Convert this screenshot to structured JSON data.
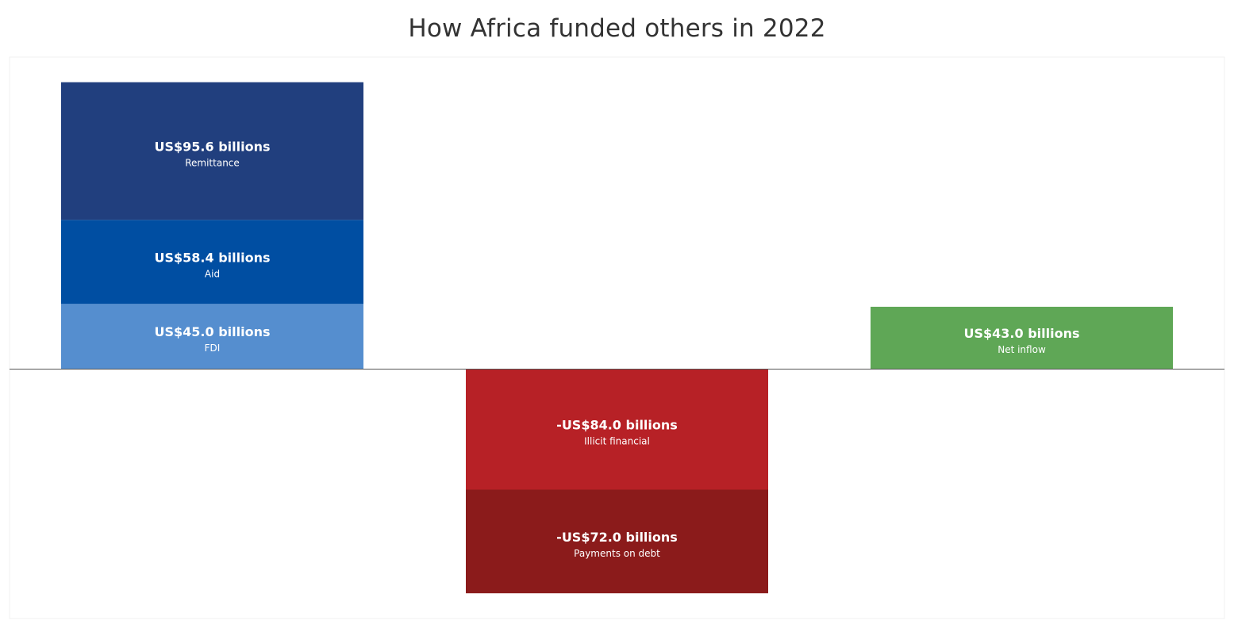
{
  "chart_data": {
    "type": "bar",
    "title": "How Africa funded others in 2022",
    "xlabel": "",
    "ylabel": "",
    "unit": "US$ billions",
    "grid": false,
    "legend": "none",
    "ylim": [
      -156,
      199
    ],
    "categories": [
      "",
      "",
      ""
    ],
    "segments": [
      {
        "category_index": 0,
        "label": "FDI",
        "value": 45.0,
        "value_text": "US$45.0 billions",
        "color": "#558ECF"
      },
      {
        "category_index": 0,
        "label": "Aid",
        "value": 58.4,
        "value_text": "US$58.4 billions",
        "color": "#004EA2"
      },
      {
        "category_index": 0,
        "label": "Remittance",
        "value": 95.6,
        "value_text": "US$95.6 billions",
        "color": "#213F7E"
      },
      {
        "category_index": 1,
        "label": "Illicit financial",
        "value": -84.0,
        "value_text": "-US$84.0 billions",
        "color": "#B72126"
      },
      {
        "category_index": 1,
        "label": "Payments on debt",
        "value": -72.0,
        "value_text": "-US$72.0 billions",
        "color": "#8B1B1B"
      },
      {
        "category_index": 2,
        "label": "Net inflow",
        "value": 43.0,
        "value_text": "US$43.0 billions",
        "color": "#5FA756"
      }
    ]
  }
}
